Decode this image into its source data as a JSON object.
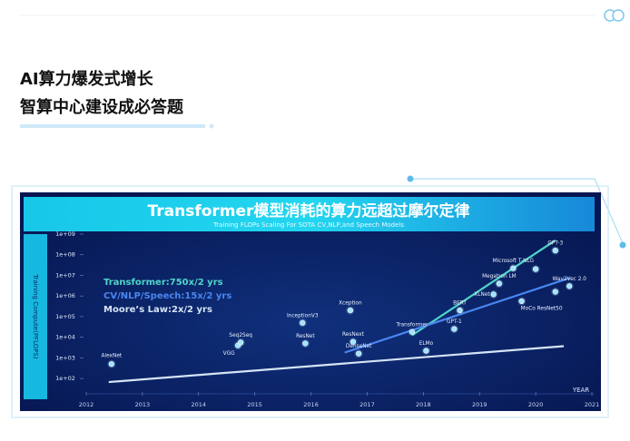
{
  "header": {
    "line1": "AI算力爆发式增长",
    "line2": "智算中心建设成必答题"
  },
  "chart_data": {
    "type": "scatter",
    "title": "Transformer模型消耗的算力远超过摩尔定律",
    "subtitle": "Training FLOPs Scaling For SOTA CV,NLP,and Speech Models",
    "x_label": "YEAR",
    "y_label": "Training Compute(PFLOPS)",
    "log_y": true,
    "legend": "upper left",
    "xlim": [
      2012,
      2021
    ],
    "xticks": [
      2012,
      2013,
      2014,
      2015,
      2016,
      2017,
      2018,
      2019,
      2020,
      2021
    ],
    "ylim": [
      20,
      1000000000
    ],
    "yticks": [
      {
        "value": 100,
        "label": "1e+02"
      },
      {
        "value": 1000,
        "label": "1e+03"
      },
      {
        "value": 10000,
        "label": "1e+04"
      },
      {
        "value": 100000,
        "label": "1e+05"
      },
      {
        "value": 1000000,
        "label": "1e+06"
      },
      {
        "value": 10000000,
        "label": "1e+07"
      },
      {
        "value": 100000000,
        "label": "1e+08"
      },
      {
        "value": 1000000000,
        "label": "1e+09"
      }
    ],
    "series": [
      {
        "color": "#9fe3ff",
        "labels": [
          "AlexNet",
          "VGG",
          "Seq2Seq",
          "InceptionV3",
          "ResNet",
          "Xception",
          "ResNext",
          "DenseNet",
          "Transformer",
          "ELMo",
          "GPT-1",
          "BERT",
          "XLNet",
          "Megatron LM",
          "MoCo ResNet50",
          "Microsoft T-NLG",
          "GPT-3",
          "Wav2Vec 2.0",
          null,
          null
        ],
        "x": [
          2012.45,
          2014.7,
          2014.75,
          2015.85,
          2015.9,
          2016.7,
          2016.75,
          2016.85,
          2017.8,
          2018.05,
          2018.55,
          2018.65,
          2019.25,
          2019.35,
          2019.75,
          2019.6,
          2020.35,
          2020.6,
          2020.0,
          2020.35
        ],
        "values": [
          500,
          4000,
          5600,
          50000,
          5000,
          200000,
          6000,
          1600,
          18000,
          2200,
          25000,
          200000,
          1200000,
          4000000,
          560000,
          22000000,
          160000000,
          3000000,
          20000000,
          1600000
        ]
      }
    ],
    "trend_lines": [
      {
        "name": "Transformer:750x/2 yrs",
        "color": "#4fd6c8",
        "x": [
          2017.8,
          2020.35
        ],
        "values": [
          12600,
          500000000
        ]
      },
      {
        "name": "CV/NLP/Speech:15x/2 yrs",
        "color": "#4a86f0",
        "x": [
          2016.6,
          2020.6
        ],
        "values": [
          1800,
          7400000
        ]
      },
      {
        "name": "Moore’s Law:2x/2 yrs",
        "color": "#d6e4f6",
        "x": [
          2012.4,
          2020.5
        ],
        "values": [
          67,
          3700
        ]
      }
    ]
  }
}
